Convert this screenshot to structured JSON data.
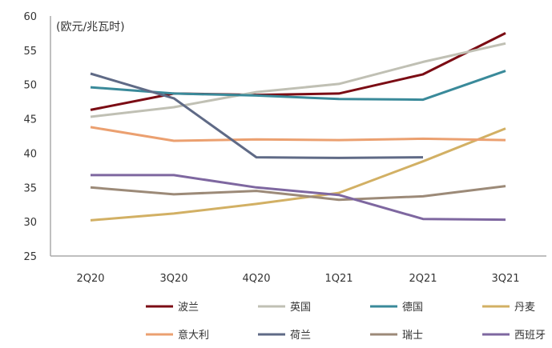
{
  "chart_data": {
    "type": "line",
    "ylabel": "(欧元/兆瓦时)",
    "categories": [
      "2Q20",
      "3Q20",
      "4Q20",
      "1Q21",
      "2Q21",
      "3Q21"
    ],
    "ylim": [
      25,
      60
    ],
    "yticks": [
      25,
      30,
      35,
      40,
      45,
      50,
      55,
      60
    ],
    "grid": false,
    "legend_position": "bottom",
    "series": [
      {
        "name": "波兰",
        "color": "#7b0c14",
        "values": [
          46.3,
          48.7,
          48.5,
          48.7,
          51.5,
          57.5
        ]
      },
      {
        "name": "英国",
        "color": "#c0c0b4",
        "values": [
          45.3,
          46.7,
          48.9,
          50.1,
          53.3,
          56.0
        ]
      },
      {
        "name": "德国",
        "color": "#3a8a9a",
        "values": [
          49.6,
          48.7,
          48.4,
          47.9,
          47.8,
          52.0
        ]
      },
      {
        "name": "丹麦",
        "color": "#d2b064",
        "values": [
          30.2,
          31.2,
          32.6,
          34.2,
          38.8,
          43.6
        ]
      },
      {
        "name": "意大利",
        "color": "#eba070",
        "values": [
          43.8,
          41.8,
          42.0,
          41.9,
          42.1,
          41.9
        ]
      },
      {
        "name": "荷兰",
        "color": "#5f6a86",
        "values": [
          51.6,
          48.0,
          39.4,
          39.3,
          39.4,
          null
        ]
      },
      {
        "name": "瑞士",
        "color": "#9c8a78",
        "values": [
          35.0,
          34.0,
          34.5,
          33.2,
          33.7,
          35.2
        ]
      },
      {
        "name": "西班牙",
        "color": "#7e67a0",
        "values": [
          36.8,
          36.8,
          35.0,
          33.9,
          30.4,
          30.3
        ]
      }
    ]
  }
}
